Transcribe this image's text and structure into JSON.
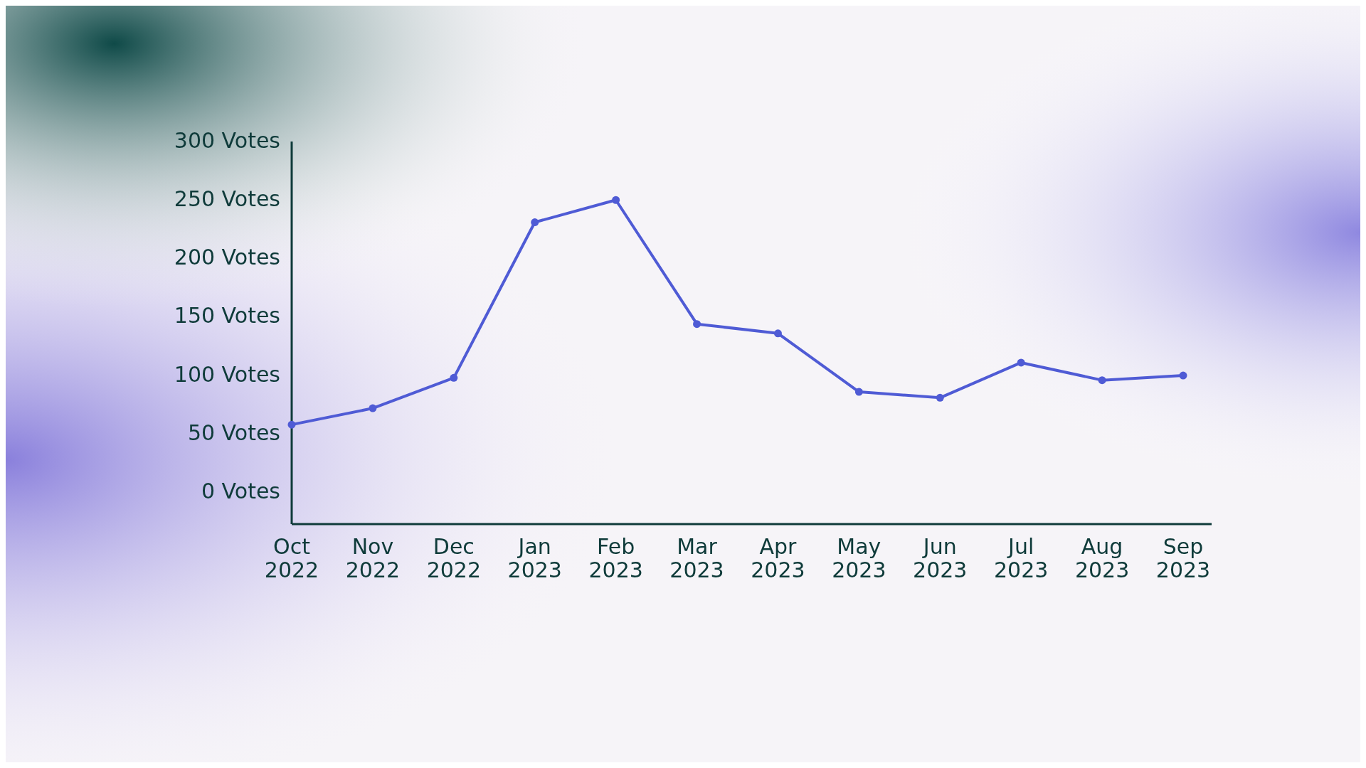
{
  "chart_data": {
    "type": "line",
    "categories": [
      "Oct 2022",
      "Nov 2022",
      "Dec 2022",
      "Jan 2023",
      "Feb 2023",
      "Mar 2023",
      "Apr 2023",
      "May 2023",
      "Jun 2023",
      "Jul 2023",
      "Aug 2023",
      "Sep 2023"
    ],
    "series": [
      {
        "color": "#4f5bd5",
        "values": [
          58,
          72,
          98,
          231,
          250,
          144,
          136,
          86,
          81,
          111,
          96,
          100
        ]
      }
    ],
    "ylim": [
      -27,
      300
    ],
    "yticks": [
      {
        "value": 0,
        "label": "0 Votes"
      },
      {
        "value": 50,
        "label": "50 Votes"
      },
      {
        "value": 100,
        "label": "100 Votes"
      },
      {
        "value": 150,
        "label": "150 Votes"
      },
      {
        "value": 200,
        "label": "200 Votes"
      },
      {
        "value": 250,
        "label": "250 Votes"
      },
      {
        "value": 300,
        "label": "300 Votes"
      }
    ],
    "grid": false,
    "marker": "circle",
    "line_style": "solid"
  }
}
